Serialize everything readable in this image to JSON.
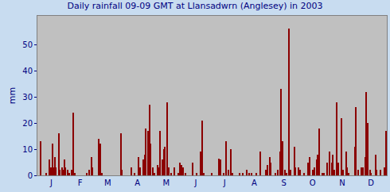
{
  "chart_data": {
    "type": "bar",
    "title": "Daily rainfall 09-09 GMT at Llansadwrn (Anglesey) in 2003",
    "y_label": "mm",
    "color": "#8b0000",
    "grid": false,
    "ylim": [
      0,
      61
    ],
    "yticks": [
      0,
      10,
      20,
      30,
      40,
      50
    ],
    "categories": [
      null,
      null,
      null,
      null,
      null,
      null,
      null,
      null,
      null,
      null,
      null,
      null,
      null,
      null,
      "J",
      null,
      null,
      null,
      null,
      null,
      null,
      null,
      null,
      null,
      null,
      null,
      null,
      null,
      null,
      null,
      null,
      null,
      null,
      null,
      null,
      null,
      null,
      null,
      null,
      null,
      null,
      null,
      null,
      null,
      "F",
      null,
      null,
      null,
      null,
      null,
      null,
      null,
      null,
      null,
      null,
      null,
      null,
      null,
      null,
      null,
      null,
      null,
      null,
      null,
      null,
      null,
      null,
      null,
      null,
      null,
      null,
      null,
      null,
      "M",
      null,
      null,
      null,
      null,
      null,
      null,
      null,
      null,
      null,
      null,
      null,
      null,
      null,
      null,
      null,
      null,
      null,
      null,
      null,
      null,
      null,
      null,
      null,
      null,
      null,
      null,
      null,
      null,
      null,
      null,
      "A",
      null,
      null,
      null,
      null,
      null,
      null,
      null,
      null,
      null,
      null,
      null,
      null,
      null,
      null,
      null,
      null,
      null,
      null,
      null,
      null,
      null,
      null,
      null,
      null,
      null,
      null,
      null,
      null,
      null,
      "M",
      null,
      null,
      null,
      null,
      null,
      null,
      null,
      null,
      null,
      null,
      null,
      null,
      null,
      null,
      null,
      null,
      null,
      null,
      null,
      null,
      null,
      null,
      null,
      null,
      null,
      null,
      null,
      null,
      null,
      null,
      "J",
      null,
      null,
      null,
      null,
      null,
      null,
      null,
      null,
      null,
      null,
      null,
      null,
      null,
      null,
      null,
      null,
      null,
      null,
      null,
      null,
      null,
      null,
      null,
      null,
      null,
      null,
      null,
      null,
      null,
      "J",
      null,
      null,
      null,
      null,
      null,
      null,
      null,
      null,
      null,
      null,
      null,
      null,
      null,
      null,
      null,
      null,
      null,
      null,
      null,
      null,
      null,
      null,
      null,
      null,
      null,
      null,
      null,
      null,
      null,
      null,
      "A",
      null,
      null,
      null,
      null,
      null,
      null,
      null,
      null,
      null,
      null,
      null,
      null,
      null,
      null,
      null,
      null,
      null,
      null,
      null,
      null,
      null,
      null,
      null,
      null,
      null,
      null,
      null,
      null,
      null,
      null,
      "S",
      null,
      null,
      null,
      null,
      null,
      null,
      null,
      null,
      null,
      null,
      null,
      null,
      null,
      null,
      null,
      null,
      null,
      null,
      null,
      null,
      null,
      null,
      null,
      null,
      null,
      null,
      null,
      null,
      null,
      "O",
      null,
      null,
      null,
      null,
      null,
      null,
      null,
      null,
      null,
      null,
      null,
      null,
      null,
      null,
      null,
      null,
      null,
      null,
      null,
      null,
      null,
      null,
      null,
      null,
      null,
      null,
      null,
      null,
      null,
      null,
      "N",
      null,
      null,
      null,
      null,
      null,
      null,
      null,
      null,
      null,
      null,
      null,
      null,
      null,
      null,
      null,
      null,
      null,
      null,
      null,
      null,
      null,
      null,
      null,
      null,
      null,
      null,
      null,
      null,
      null,
      "D",
      null,
      null,
      null,
      null,
      null,
      null,
      null,
      null,
      null,
      null,
      null,
      null,
      null,
      null,
      null,
      null
    ],
    "values": [
      0,
      0,
      0,
      13,
      0,
      0,
      0,
      0,
      0,
      1,
      0,
      0,
      6,
      0,
      3,
      12,
      0,
      3,
      7,
      3,
      0,
      0,
      16,
      2,
      0,
      3,
      0,
      2,
      6,
      3,
      0,
      2,
      0,
      1,
      0,
      2,
      0,
      24,
      0,
      1,
      0,
      0,
      0,
      0,
      0,
      0,
      0,
      0,
      0,
      0,
      0,
      1,
      0,
      0,
      2,
      0,
      7,
      3,
      0,
      0,
      0,
      0,
      0,
      0,
      14,
      12,
      0,
      1,
      0,
      0,
      0,
      0,
      0,
      0,
      0,
      0,
      0,
      0,
      0,
      0,
      0,
      0,
      0,
      0,
      0,
      0,
      0,
      16,
      2,
      0,
      0,
      0,
      0,
      0,
      0,
      0,
      0,
      0,
      3,
      0,
      0,
      1,
      0,
      0,
      0,
      7,
      0,
      3,
      0,
      0,
      6,
      0,
      8,
      18,
      0,
      17,
      0,
      27,
      12,
      0,
      3,
      0,
      1,
      0,
      0,
      4,
      0,
      3,
      17,
      0,
      6,
      0,
      10,
      11,
      0,
      28,
      0,
      3,
      0,
      1,
      0,
      0,
      0,
      3,
      0,
      0,
      0,
      1,
      5,
      0,
      4,
      0,
      3,
      0,
      1,
      0,
      0,
      0,
      0,
      0,
      0,
      0,
      5,
      0,
      0,
      0,
      1,
      0,
      0,
      0,
      9,
      0,
      21,
      1,
      0,
      0,
      0,
      0,
      0,
      0,
      0,
      0,
      1,
      0,
      0,
      0,
      0,
      0,
      0,
      6.5,
      0,
      6,
      0,
      0,
      1,
      0,
      0,
      13,
      0,
      2,
      0,
      0,
      10,
      1,
      0,
      0,
      0,
      0,
      0,
      0,
      0,
      1,
      0,
      0,
      1,
      0,
      0,
      0,
      2,
      0,
      0,
      1,
      0,
      1,
      0,
      0,
      0,
      0,
      1,
      0,
      0,
      0,
      9,
      0,
      0,
      0,
      0,
      0,
      2,
      0,
      4,
      0,
      7,
      5,
      0,
      0,
      0,
      0,
      1,
      0,
      0,
      2,
      0,
      9,
      33,
      0,
      13,
      0,
      2,
      0,
      1,
      0,
      56,
      0,
      2,
      0,
      0,
      0,
      11,
      3,
      0,
      0,
      3,
      0,
      2,
      0,
      0,
      0,
      1,
      0,
      0,
      0,
      5,
      0,
      7,
      0,
      0,
      2,
      0,
      3,
      0,
      6,
      8,
      0,
      18,
      0,
      0,
      1,
      0,
      1,
      0,
      0,
      5,
      0,
      0,
      9,
      0,
      5,
      8,
      0,
      2,
      0,
      28,
      0,
      5,
      0,
      0,
      22,
      0,
      2,
      0,
      0,
      9,
      3,
      0,
      1,
      0,
      0,
      0,
      0,
      0,
      11,
      26,
      0,
      0,
      2,
      0,
      0,
      3,
      0,
      3,
      0,
      7,
      32,
      0,
      20,
      0,
      2,
      1,
      0,
      0,
      0,
      0,
      8,
      2,
      0,
      0,
      0,
      2,
      0,
      0,
      0,
      3,
      0,
      17
    ]
  }
}
